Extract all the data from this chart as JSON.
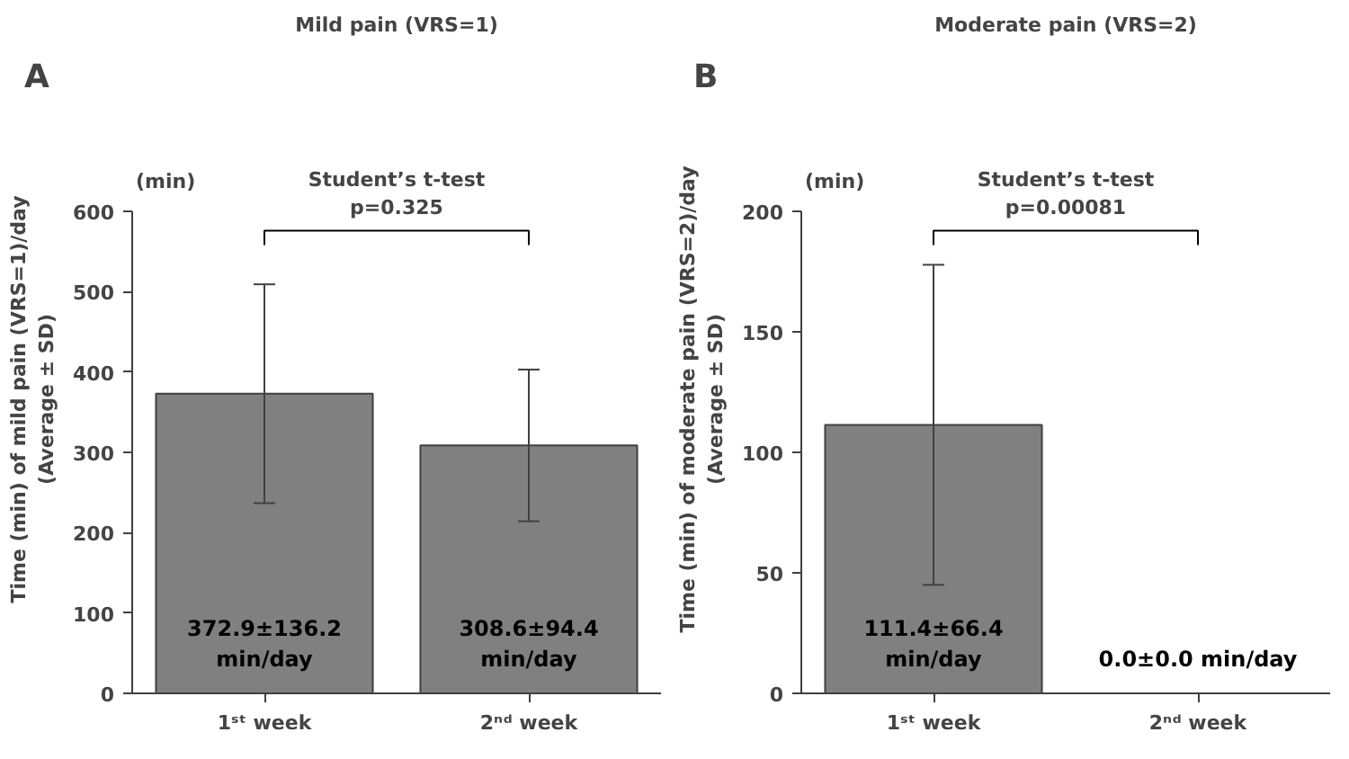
{
  "chart_data": [
    {
      "type": "bar",
      "title": "Mild pain (VRS=1)",
      "ylabel": "Time (min) of mild pain (VRS=1)/day\n(Average ± SD)",
      "categories": [
        "1ˢᵗ week",
        "2ⁿᵈ week"
      ],
      "values": [
        372.9,
        308.6
      ],
      "errors": [
        136.2,
        94.4
      ],
      "value_labels": [
        "372.9±136.2\nmin/day",
        "308.6±94.4\nmin/day"
      ],
      "color": "#808080",
      "ylim": [
        0,
        600
      ],
      "yticks": [
        0,
        100,
        200,
        300,
        400,
        500,
        600
      ],
      "grid": false,
      "annotations": [
        "A",
        "(min)",
        "Student’s t-test\np=0.325"
      ]
    },
    {
      "type": "bar",
      "title": "Moderate pain (VRS=2)",
      "ylabel": "Time (min) of moderate pain (VRS=2)/day\n(Average ± SD)",
      "categories": [
        "1ˢᵗ week",
        "2ⁿᵈ week"
      ],
      "values": [
        111.4,
        0.0
      ],
      "errors": [
        66.4,
        0.0
      ],
      "value_labels": [
        "111.4±66.4\nmin/day",
        "0.0±0.0 min/day"
      ],
      "color": "#808080",
      "ylim": [
        0,
        200
      ],
      "yticks": [
        0,
        50,
        100,
        150,
        200
      ],
      "grid": false,
      "annotations": [
        "B",
        "(min)",
        "Student’s t-test\np=0.00081"
      ]
    }
  ]
}
